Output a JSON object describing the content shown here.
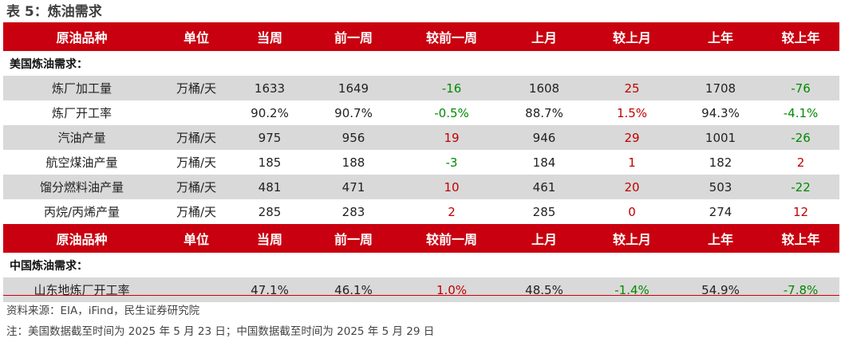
{
  "title": "表 5：炼油需求",
  "header": [
    "原油品种",
    "单位",
    "当周",
    "前一周",
    "较前一周",
    "上月",
    "较上月",
    "上年",
    "较上年"
  ],
  "us_section": "美国炼油需求：",
  "us_rows": [
    {
      "name": "炼厂加工量",
      "unit": "万桶/天",
      "cur": "1633",
      "prev": "1649",
      "dprev": "-16",
      "dprev_color": "green",
      "month": "1608",
      "dmonth": "25",
      "dmonth_color": "red",
      "year": "1708",
      "dyear": "-76",
      "dyear_color": "green"
    },
    {
      "name": "炼厂开工率",
      "unit": "",
      "cur": "90.2%",
      "prev": "90.7%",
      "dprev": "-0.5%",
      "dprev_color": "green",
      "month": "88.7%",
      "dmonth": "1.5%",
      "dmonth_color": "red",
      "year": "94.3%",
      "dyear": "-4.1%",
      "dyear_color": "green"
    },
    {
      "name": "汽油产量",
      "unit": "万桶/天",
      "cur": "975",
      "prev": "956",
      "dprev": "19",
      "dprev_color": "red",
      "month": "946",
      "dmonth": "29",
      "dmonth_color": "red",
      "year": "1001",
      "dyear": "-26",
      "dyear_color": "green"
    },
    {
      "name": "航空煤油产量",
      "unit": "万桶/天",
      "cur": "185",
      "prev": "188",
      "dprev": "-3",
      "dprev_color": "green",
      "month": "184",
      "dmonth": "1",
      "dmonth_color": "red",
      "year": "182",
      "dyear": "2",
      "dyear_color": "red"
    },
    {
      "name": "馏分燃料油产量",
      "unit": "万桶/天",
      "cur": "481",
      "prev": "471",
      "dprev": "10",
      "dprev_color": "red",
      "month": "461",
      "dmonth": "20",
      "dmonth_color": "red",
      "year": "503",
      "dyear": "-22",
      "dyear_color": "green"
    },
    {
      "name": "丙烷/丙烯产量",
      "unit": "万桶/天",
      "cur": "285",
      "prev": "283",
      "dprev": "2",
      "dprev_color": "red",
      "month": "285",
      "dmonth": "0",
      "dmonth_color": "red",
      "year": "274",
      "dyear": "12",
      "dyear_color": "red"
    }
  ],
  "cn_section": "中国炼油需求：",
  "cn_rows": [
    {
      "name": "山东地炼厂开工率",
      "unit": "",
      "cur": "47.1%",
      "prev": "46.1%",
      "dprev": "1.0%",
      "dprev_color": "red",
      "month": "48.5%",
      "dmonth": "-1.4%",
      "dmonth_color": "green",
      "year": "54.9%",
      "dyear": "-7.8%",
      "dyear_color": "green"
    }
  ],
  "source": "资料来源：EIA，iFind，民生证券研究院",
  "note": "注：美国数据截至时间为 2025 年 5 月 23 日；中国数据截至时间为 2025 年 5 月 29 日",
  "colors": {
    "header_bg": "#c8000f",
    "stripe": "#d9d9d9",
    "up": "#c00000",
    "down": "#008a00"
  }
}
